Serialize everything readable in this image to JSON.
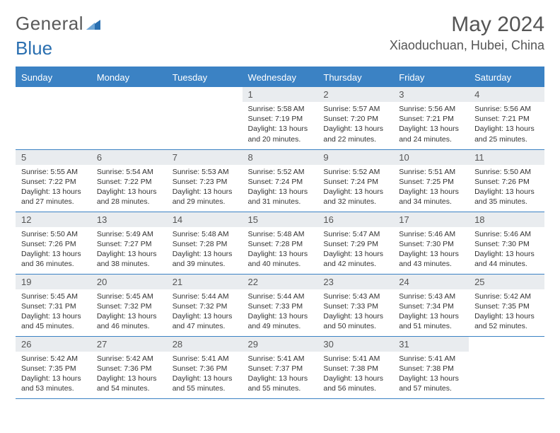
{
  "brand": {
    "word1": "General",
    "word2": "Blue",
    "word1_color": "#6a6a6a",
    "word2_color": "#2a6fb0",
    "triangle_color": "#2a6fb0"
  },
  "title": "May 2024",
  "location": "Xiaoduchuan, Hubei, China",
  "colors": {
    "header_bg": "#3b82c4",
    "rule": "#3b82c4",
    "daynum_bg": "#e9ecef",
    "text": "#333333"
  },
  "weekdays": [
    "Sunday",
    "Monday",
    "Tuesday",
    "Wednesday",
    "Thursday",
    "Friday",
    "Saturday"
  ],
  "weeks": [
    [
      {
        "blank": true
      },
      {
        "blank": true
      },
      {
        "blank": true
      },
      {
        "n": "1",
        "sr": "5:58 AM",
        "ss": "7:19 PM",
        "d1": "13 hours",
        "d2": "and 20 minutes."
      },
      {
        "n": "2",
        "sr": "5:57 AM",
        "ss": "7:20 PM",
        "d1": "13 hours",
        "d2": "and 22 minutes."
      },
      {
        "n": "3",
        "sr": "5:56 AM",
        "ss": "7:21 PM",
        "d1": "13 hours",
        "d2": "and 24 minutes."
      },
      {
        "n": "4",
        "sr": "5:56 AM",
        "ss": "7:21 PM",
        "d1": "13 hours",
        "d2": "and 25 minutes."
      }
    ],
    [
      {
        "n": "5",
        "sr": "5:55 AM",
        "ss": "7:22 PM",
        "d1": "13 hours",
        "d2": "and 27 minutes."
      },
      {
        "n": "6",
        "sr": "5:54 AM",
        "ss": "7:22 PM",
        "d1": "13 hours",
        "d2": "and 28 minutes."
      },
      {
        "n": "7",
        "sr": "5:53 AM",
        "ss": "7:23 PM",
        "d1": "13 hours",
        "d2": "and 29 minutes."
      },
      {
        "n": "8",
        "sr": "5:52 AM",
        "ss": "7:24 PM",
        "d1": "13 hours",
        "d2": "and 31 minutes."
      },
      {
        "n": "9",
        "sr": "5:52 AM",
        "ss": "7:24 PM",
        "d1": "13 hours",
        "d2": "and 32 minutes."
      },
      {
        "n": "10",
        "sr": "5:51 AM",
        "ss": "7:25 PM",
        "d1": "13 hours",
        "d2": "and 34 minutes."
      },
      {
        "n": "11",
        "sr": "5:50 AM",
        "ss": "7:26 PM",
        "d1": "13 hours",
        "d2": "and 35 minutes."
      }
    ],
    [
      {
        "n": "12",
        "sr": "5:50 AM",
        "ss": "7:26 PM",
        "d1": "13 hours",
        "d2": "and 36 minutes."
      },
      {
        "n": "13",
        "sr": "5:49 AM",
        "ss": "7:27 PM",
        "d1": "13 hours",
        "d2": "and 38 minutes."
      },
      {
        "n": "14",
        "sr": "5:48 AM",
        "ss": "7:28 PM",
        "d1": "13 hours",
        "d2": "and 39 minutes."
      },
      {
        "n": "15",
        "sr": "5:48 AM",
        "ss": "7:28 PM",
        "d1": "13 hours",
        "d2": "and 40 minutes."
      },
      {
        "n": "16",
        "sr": "5:47 AM",
        "ss": "7:29 PM",
        "d1": "13 hours",
        "d2": "and 42 minutes."
      },
      {
        "n": "17",
        "sr": "5:46 AM",
        "ss": "7:30 PM",
        "d1": "13 hours",
        "d2": "and 43 minutes."
      },
      {
        "n": "18",
        "sr": "5:46 AM",
        "ss": "7:30 PM",
        "d1": "13 hours",
        "d2": "and 44 minutes."
      }
    ],
    [
      {
        "n": "19",
        "sr": "5:45 AM",
        "ss": "7:31 PM",
        "d1": "13 hours",
        "d2": "and 45 minutes."
      },
      {
        "n": "20",
        "sr": "5:45 AM",
        "ss": "7:32 PM",
        "d1": "13 hours",
        "d2": "and 46 minutes."
      },
      {
        "n": "21",
        "sr": "5:44 AM",
        "ss": "7:32 PM",
        "d1": "13 hours",
        "d2": "and 47 minutes."
      },
      {
        "n": "22",
        "sr": "5:44 AM",
        "ss": "7:33 PM",
        "d1": "13 hours",
        "d2": "and 49 minutes."
      },
      {
        "n": "23",
        "sr": "5:43 AM",
        "ss": "7:33 PM",
        "d1": "13 hours",
        "d2": "and 50 minutes."
      },
      {
        "n": "24",
        "sr": "5:43 AM",
        "ss": "7:34 PM",
        "d1": "13 hours",
        "d2": "and 51 minutes."
      },
      {
        "n": "25",
        "sr": "5:42 AM",
        "ss": "7:35 PM",
        "d1": "13 hours",
        "d2": "and 52 minutes."
      }
    ],
    [
      {
        "n": "26",
        "sr": "5:42 AM",
        "ss": "7:35 PM",
        "d1": "13 hours",
        "d2": "and 53 minutes."
      },
      {
        "n": "27",
        "sr": "5:42 AM",
        "ss": "7:36 PM",
        "d1": "13 hours",
        "d2": "and 54 minutes."
      },
      {
        "n": "28",
        "sr": "5:41 AM",
        "ss": "7:36 PM",
        "d1": "13 hours",
        "d2": "and 55 minutes."
      },
      {
        "n": "29",
        "sr": "5:41 AM",
        "ss": "7:37 PM",
        "d1": "13 hours",
        "d2": "and 55 minutes."
      },
      {
        "n": "30",
        "sr": "5:41 AM",
        "ss": "7:38 PM",
        "d1": "13 hours",
        "d2": "and 56 minutes."
      },
      {
        "n": "31",
        "sr": "5:41 AM",
        "ss": "7:38 PM",
        "d1": "13 hours",
        "d2": "and 57 minutes."
      },
      {
        "blank": true
      }
    ]
  ]
}
